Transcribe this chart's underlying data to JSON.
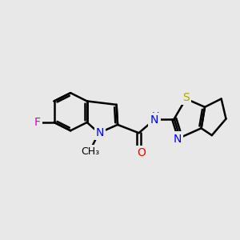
{
  "background_color": "#e8e8e8",
  "bond_color": "#000000",
  "bond_width": 1.8,
  "atom_colors": {
    "F": "#cc00cc",
    "N": "#0000ff",
    "O": "#ff0000",
    "S": "#aaaa00",
    "C": "#000000"
  },
  "font_size": 10,
  "fig_size": [
    3.0,
    3.0
  ],
  "dpi": 100
}
